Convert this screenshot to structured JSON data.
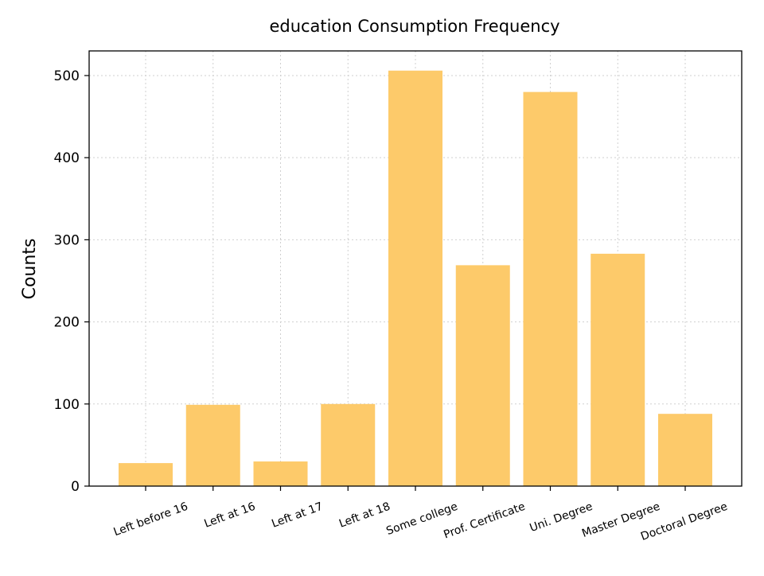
{
  "chart_data": {
    "type": "bar",
    "title": "education Consumption Frequency",
    "xlabel": "",
    "ylabel": "Counts",
    "categories": [
      "Left before 16",
      "Left at 16",
      "Left at 17",
      "Left at 18",
      "Some college",
      "Prof. Certificate",
      "Uni. Degree",
      "Master Degree",
      "Doctoral Degree"
    ],
    "values": [
      28,
      99,
      30,
      100,
      506,
      269,
      480,
      283,
      88
    ],
    "ylim": [
      0,
      530
    ],
    "yticks": [
      0,
      100,
      200,
      300,
      400,
      500
    ],
    "grid": true,
    "bar_color": "#fdca6a"
  }
}
